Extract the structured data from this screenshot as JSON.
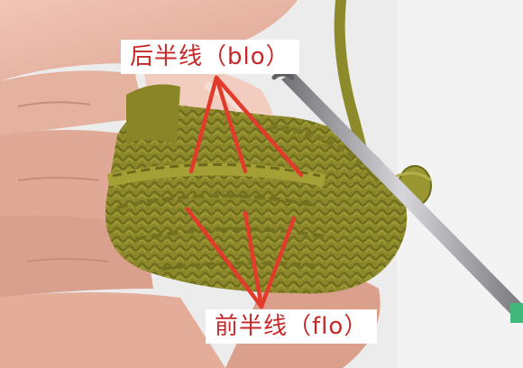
{
  "photo": {
    "subject": "hand-holding-crochet-work",
    "yarn_color": "#8f8a2a",
    "hook_color": "#9e9ea2",
    "arrow_color": "#e23b2b",
    "background_color": "#e9e9ea"
  },
  "annotations": {
    "back_loop_label": "后半线（blo）",
    "front_loop_label": "前半线（flo）"
  }
}
